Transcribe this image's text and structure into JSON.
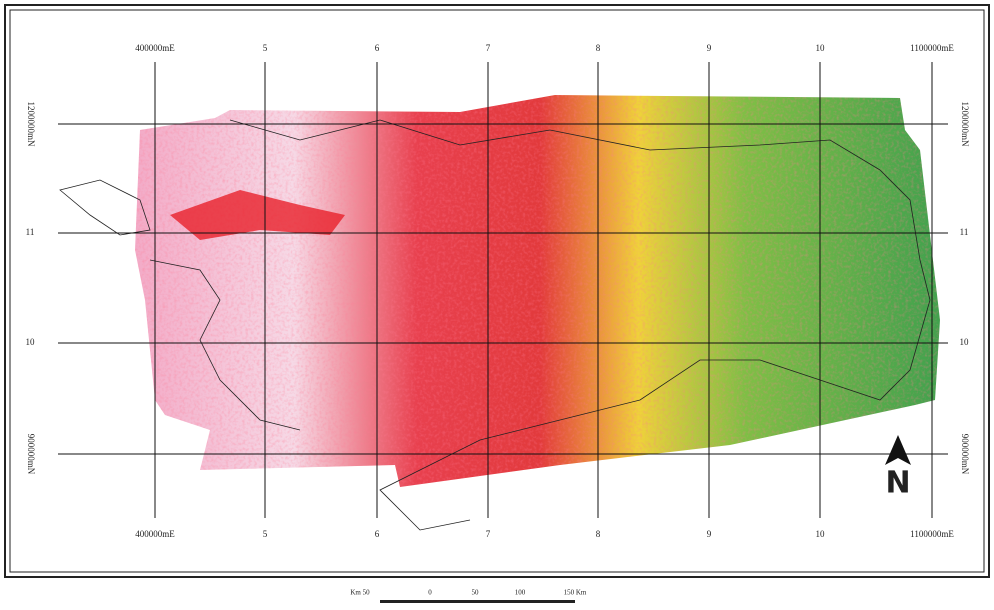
{
  "grid": {
    "top_labels": [
      "400000mE",
      "5",
      "6",
      "7",
      "8",
      "9",
      "10",
      "1100000mE"
    ],
    "bottom_labels": [
      "400000mE",
      "5",
      "6",
      "7",
      "8",
      "9",
      "10",
      "1100000mE"
    ],
    "left_labels": [
      "1200000mN",
      "11",
      "10",
      "900000mN"
    ],
    "right_labels": [
      "1200000mN",
      "11",
      "10",
      "900000mN"
    ]
  },
  "scale_bar": {
    "labels": [
      "Km 50",
      "0",
      "50",
      "100",
      "150 Km"
    ]
  },
  "north_arrow": {
    "label": "N"
  }
}
